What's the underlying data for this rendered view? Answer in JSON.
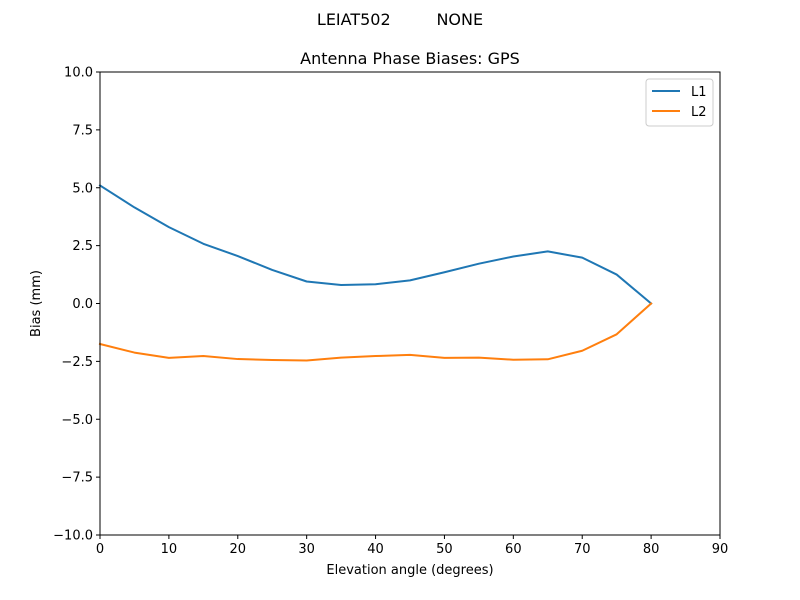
{
  "figure": {
    "suptitle": "LEIAT502         NONE"
  },
  "chart_data": {
    "type": "line",
    "title": "Antenna Phase Biases: GPS",
    "xlabel": "Elevation angle (degrees)",
    "ylabel": "Bias (mm)",
    "xlim": [
      0,
      90
    ],
    "ylim": [
      -10,
      10
    ],
    "xticks": [
      0,
      10,
      20,
      30,
      40,
      50,
      60,
      70,
      80,
      90
    ],
    "xtick_labels": [
      "0",
      "10",
      "20",
      "30",
      "40",
      "50",
      "60",
      "70",
      "80",
      "90"
    ],
    "yticks": [
      -10,
      -7.5,
      -5,
      -2.5,
      0,
      2.5,
      5,
      7.5,
      10
    ],
    "ytick_labels": [
      "−10.0",
      "−7.5",
      "−5.0",
      "−2.5",
      "0.0",
      "2.5",
      "5.0",
      "7.5",
      "10.0"
    ],
    "grid": false,
    "legend_position": "top-right",
    "x": [
      0,
      5,
      10,
      15,
      20,
      25,
      30,
      35,
      40,
      45,
      50,
      55,
      60,
      65,
      70,
      75,
      80
    ],
    "series": [
      {
        "name": "L1",
        "color": "#1f77b4",
        "values": [
          5.1,
          4.15,
          3.3,
          2.58,
          2.05,
          1.45,
          0.95,
          0.8,
          0.83,
          1.0,
          1.35,
          1.72,
          2.03,
          2.25,
          1.98,
          1.25,
          0.0
        ]
      },
      {
        "name": "L2",
        "color": "#ff7f0e",
        "values": [
          -1.75,
          -2.12,
          -2.35,
          -2.27,
          -2.4,
          -2.44,
          -2.46,
          -2.34,
          -2.27,
          -2.22,
          -2.35,
          -2.34,
          -2.43,
          -2.41,
          -2.04,
          -1.33,
          0.0
        ]
      }
    ]
  }
}
